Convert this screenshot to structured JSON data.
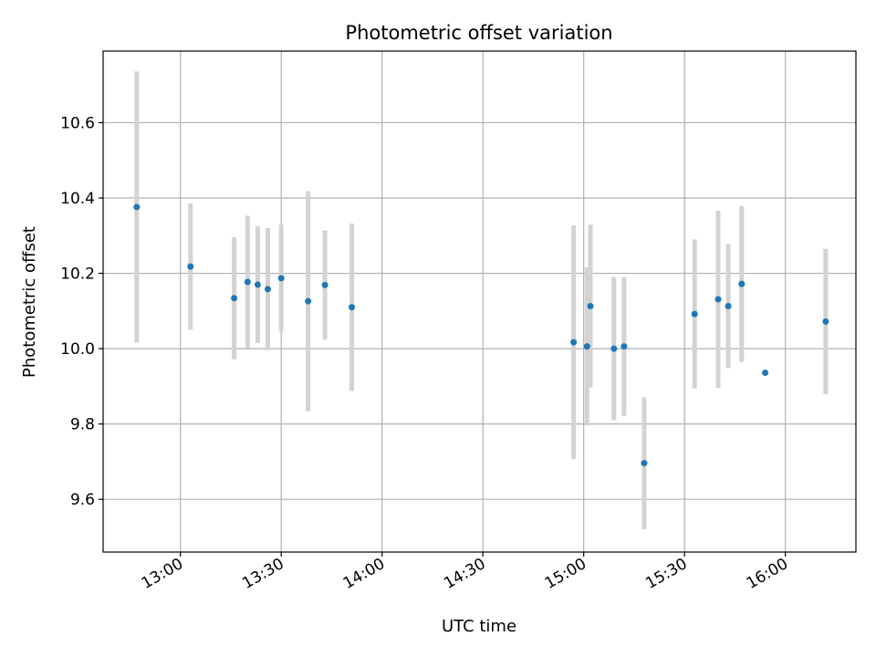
{
  "chart_data": {
    "type": "scatter",
    "title": "Photometric offset variation",
    "xlabel": "UTC time",
    "ylabel": "Photometric offset",
    "xlim": [
      "12:37",
      "16:21"
    ],
    "ylim": [
      9.46,
      10.79
    ],
    "x_ticks": [
      "13:00",
      "13:30",
      "14:00",
      "14:30",
      "15:00",
      "15:30",
      "16:00"
    ],
    "y_ticks": [
      9.6,
      9.8,
      10.0,
      10.2,
      10.4,
      10.6
    ],
    "grid": true,
    "point_color": "#1f77b4",
    "errorbar_color": "#d3d3d3",
    "points": [
      {
        "x": "12:47",
        "y": 10.376,
        "yerr": 0.36
      },
      {
        "x": "13:03",
        "y": 10.218,
        "yerr": 0.168
      },
      {
        "x": "13:16",
        "y": 10.134,
        "yerr": 0.162
      },
      {
        "x": "13:20",
        "y": 10.177,
        "yerr": 0.176
      },
      {
        "x": "13:23",
        "y": 10.17,
        "yerr": 0.155
      },
      {
        "x": "13:26",
        "y": 10.158,
        "yerr": 0.162
      },
      {
        "x": "13:30",
        "y": 10.187,
        "yerr": 0.142
      },
      {
        "x": "13:38",
        "y": 10.126,
        "yerr": 0.292
      },
      {
        "x": "13:43",
        "y": 10.169,
        "yerr": 0.145
      },
      {
        "x": "13:51",
        "y": 10.11,
        "yerr": 0.222
      },
      {
        "x": "14:57",
        "y": 10.017,
        "yerr": 0.31
      },
      {
        "x": "15:01",
        "y": 10.006,
        "yerr": 0.21
      },
      {
        "x": "15:02",
        "y": 10.113,
        "yerr": 0.216
      },
      {
        "x": "15:09",
        "y": 10.0,
        "yerr": 0.19
      },
      {
        "x": "15:12",
        "y": 10.006,
        "yerr": 0.184
      },
      {
        "x": "15:18",
        "y": 9.696,
        "yerr": 0.175
      },
      {
        "x": "15:33",
        "y": 10.092,
        "yerr": 0.198
      },
      {
        "x": "15:40",
        "y": 10.131,
        "yerr": 0.235
      },
      {
        "x": "15:43",
        "y": 10.113,
        "yerr": 0.165
      },
      {
        "x": "15:47",
        "y": 10.172,
        "yerr": 0.207
      },
      {
        "x": "15:54",
        "y": 9.936,
        "yerr": 0
      },
      {
        "x": "16:12",
        "y": 10.072,
        "yerr": 0.193
      }
    ]
  }
}
